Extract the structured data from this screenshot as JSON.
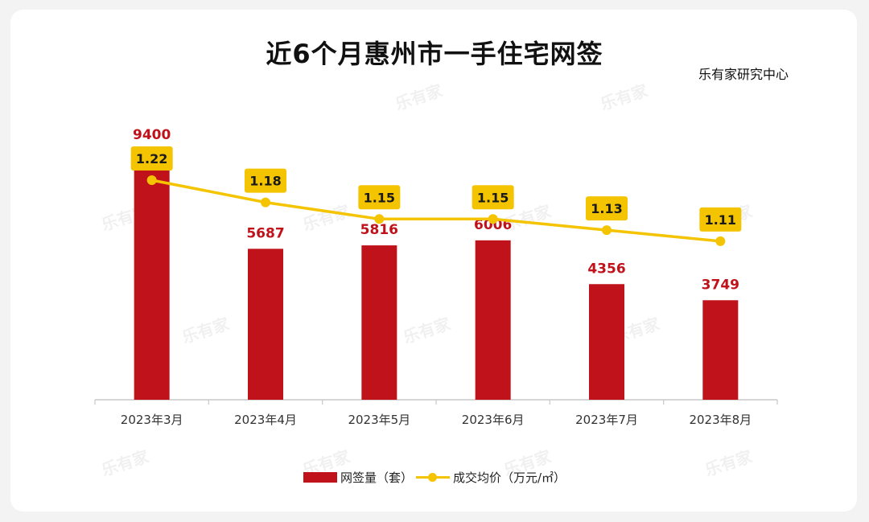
{
  "source_label": "乐有家研究中心",
  "watermark": "乐有家",
  "colors": {
    "bar": "#c0121a",
    "line": "#f5c400",
    "label_box": "#f5c400"
  },
  "chart_data": {
    "type": "bar",
    "title": "近6个月惠州市一手住宅网签",
    "categories": [
      "2023年3月",
      "2023年4月",
      "2023年5月",
      "2023年6月",
      "2023年7月",
      "2023年8月"
    ],
    "series": [
      {
        "name": "网签量（套）",
        "type": "bar",
        "axis": "left",
        "values": [
          9400,
          5687,
          5816,
          6006,
          4356,
          3749
        ]
      },
      {
        "name": "成交均价（万元/㎡）",
        "type": "line",
        "axis": "right",
        "values": [
          1.22,
          1.18,
          1.15,
          1.15,
          1.13,
          1.11
        ]
      }
    ],
    "ylim_left": [
      0,
      10000
    ],
    "ylim_right": [
      0,
      1.3
    ],
    "grid": false,
    "legend_position": "bottom"
  }
}
